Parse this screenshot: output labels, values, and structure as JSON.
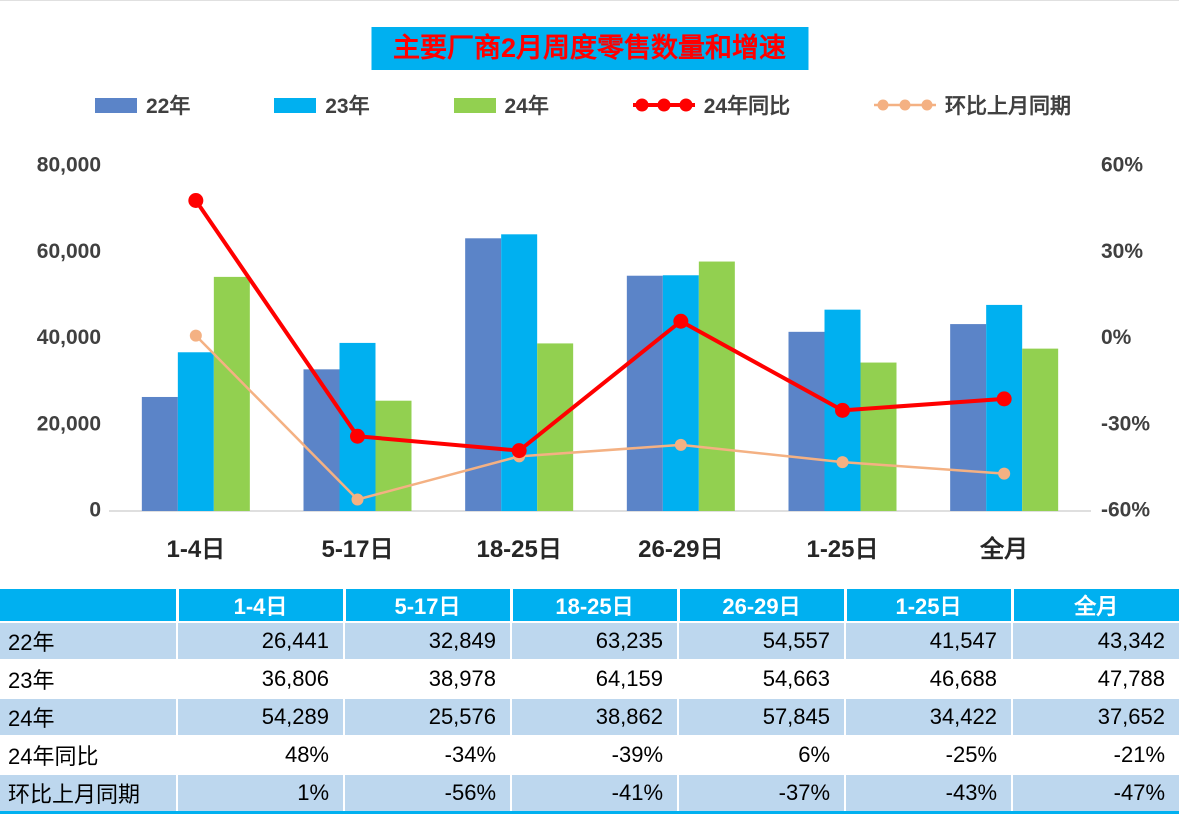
{
  "title": "主要厂商2月周度零售数量和增速",
  "colors": {
    "title_bg": "#00B0F0",
    "title_text": "#FF0000",
    "bar_22": "#5B84C8",
    "bar_23": "#00B0F0",
    "bar_24": "#92D050",
    "line_yoy": "#FF0000",
    "line_mom": "#F4B183",
    "table_header_bg": "#00B0F0",
    "table_row_alt": "#BDD7EE",
    "axis_text": "#404040"
  },
  "legend": [
    {
      "key": "22",
      "label": "22年",
      "type": "bar",
      "color_key": "bar_22"
    },
    {
      "key": "23",
      "label": "23年",
      "type": "bar",
      "color_key": "bar_23"
    },
    {
      "key": "24",
      "label": "24年",
      "type": "bar",
      "color_key": "bar_24"
    },
    {
      "key": "yoy",
      "label": "24年同比",
      "type": "line",
      "color_key": "line_yoy"
    },
    {
      "key": "mom",
      "label": "环比上月同期",
      "type": "line",
      "color_key": "line_mom"
    }
  ],
  "chart_data": {
    "type": "bar",
    "subtype": "grouped-bars-with-lines",
    "title": "主要厂商2月周度零售数量和增速",
    "categories": [
      "1-4日",
      "5-17日",
      "18-25日",
      "26-29日",
      "1-25日",
      "全月"
    ],
    "series": [
      {
        "name": "22年",
        "type": "bar",
        "axis": "left",
        "color_key": "bar_22",
        "values": [
          26441,
          32849,
          63235,
          54557,
          41547,
          43342
        ]
      },
      {
        "name": "23年",
        "type": "bar",
        "axis": "left",
        "color_key": "bar_23",
        "values": [
          36806,
          38978,
          64159,
          54663,
          46688,
          47788
        ]
      },
      {
        "name": "24年",
        "type": "bar",
        "axis": "left",
        "color_key": "bar_24",
        "values": [
          54289,
          25576,
          38862,
          57845,
          34422,
          37652
        ]
      },
      {
        "name": "24年同比",
        "type": "line",
        "axis": "right",
        "color_key": "line_yoy",
        "line_width": 4,
        "marker_radius": 7.5,
        "values": [
          48,
          -34,
          -39,
          6,
          -25,
          -21
        ]
      },
      {
        "name": "环比上月同期",
        "type": "line",
        "axis": "right",
        "color_key": "line_mom",
        "line_width": 2.5,
        "marker_radius": 6,
        "values": [
          1,
          -56,
          -41,
          -37,
          -43,
          -47
        ]
      }
    ],
    "left_axis": {
      "min": 0,
      "max": 80000,
      "ticks": [
        "0",
        "20,000",
        "40,000",
        "60,000",
        "80,000"
      ]
    },
    "right_axis": {
      "min": -60,
      "max": 60,
      "ticks": [
        "-60%",
        "-30%",
        "0%",
        "30%",
        "60%"
      ]
    },
    "grid": false,
    "legend_position": "top"
  },
  "table": {
    "header": [
      "",
      "1-4日",
      "5-17日",
      "18-25日",
      "26-29日",
      "1-25日",
      "全月"
    ],
    "rows": [
      {
        "label": "22年",
        "values": [
          "26,441",
          "32,849",
          "63,235",
          "54,557",
          "41,547",
          "43,342"
        ]
      },
      {
        "label": "23年",
        "values": [
          "36,806",
          "38,978",
          "64,159",
          "54,663",
          "46,688",
          "47,788"
        ]
      },
      {
        "label": "24年",
        "values": [
          "54,289",
          "25,576",
          "38,862",
          "57,845",
          "34,422",
          "37,652"
        ]
      },
      {
        "label": "24年同比",
        "values": [
          "48%",
          "-34%",
          "-39%",
          "6%",
          "-25%",
          "-21%"
        ]
      },
      {
        "label": "环比上月同期",
        "values": [
          "1%",
          "-56%",
          "-41%",
          "-37%",
          "-43%",
          "-47%"
        ]
      }
    ]
  }
}
